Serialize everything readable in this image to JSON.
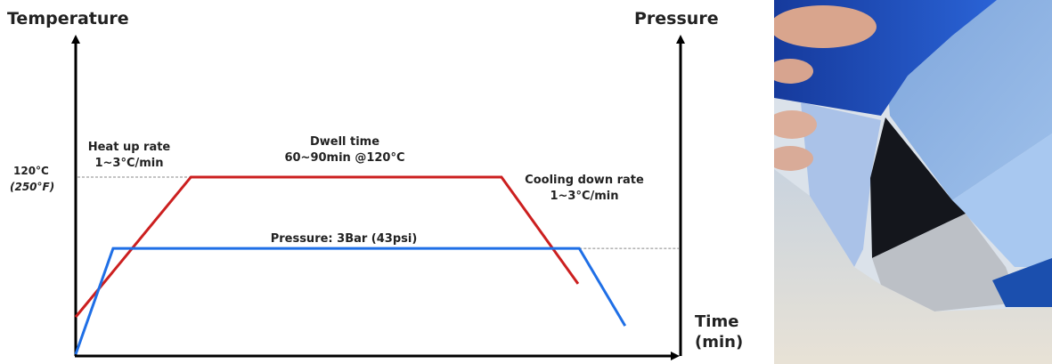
{
  "chart_data": {
    "type": "line",
    "title": "",
    "y_left_label": "Temperature",
    "y_right_label": "Pressure",
    "x_label_line1": "Time",
    "x_label_line2": "(min)",
    "x_range": [
      0,
      100
    ],
    "y_range": [
      0,
      100
    ],
    "grid": false,
    "temp_tick_label": "120°C",
    "temp_tick_sublabel": "(250°F)",
    "temp_tick_level": 55.6,
    "pressure_level": 33.2,
    "series": [
      {
        "name": "Temperature",
        "color": "#cc1f1f",
        "x": [
          0,
          19.1,
          70.6,
          83.3
        ],
        "y": [
          11.7,
          55.6,
          55.6,
          22.1
        ]
      },
      {
        "name": "Pressure",
        "color": "#1f6fe6",
        "x": [
          0,
          6.2,
          83.5,
          91.1
        ],
        "y": [
          0,
          33.2,
          33.2,
          8.9
        ]
      }
    ],
    "annotations": {
      "heat_up_line1": "Heat up rate",
      "heat_up_line2": "1~3°C/min",
      "dwell_line1": "Dwell time",
      "dwell_line2": "60~90min @120°C",
      "cooling_line1": "Cooling down rate",
      "cooling_line2": "1~3°C/min",
      "pressure_note": "Pressure: 3Bar (43psi)"
    }
  },
  "photo": {
    "icon": "peeling-film-photo"
  }
}
